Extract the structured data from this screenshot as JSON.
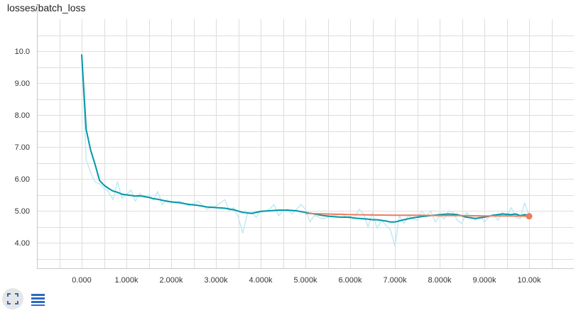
{
  "title": "losses/batch_loss",
  "icons": {
    "expand": "fullscreen-icon",
    "data": "data-table-icon"
  },
  "colors": {
    "raw": "#bfe8f2",
    "smoothed": "#0097a7",
    "second_run": "#ef7c5b"
  },
  "chart_data": {
    "type": "line",
    "xlim": [
      -1000,
      11000
    ],
    "ylim": [
      3.2,
      11.0
    ],
    "grid": true,
    "x_ticks": [
      0,
      1000,
      2000,
      3000,
      4000,
      5000,
      6000,
      7000,
      8000,
      9000,
      10000
    ],
    "x_tick_labels": [
      "0.000",
      "1.000k",
      "2.000k",
      "3.000k",
      "4.000k",
      "5.000k",
      "6.000k",
      "7.000k",
      "8.000k",
      "9.000k",
      "10.00k"
    ],
    "y_ticks": [
      4,
      5,
      6,
      7,
      8,
      9,
      10
    ],
    "y_tick_labels": [
      "4.00",
      "5.00",
      "6.00",
      "7.00",
      "8.00",
      "9.00",
      "10.0"
    ],
    "series": [
      {
        "style": "raw",
        "color": "#bfe8f2",
        "x": [
          0,
          100,
          200,
          300,
          400,
          500,
          600,
          700,
          800,
          900,
          1000,
          1100,
          1200,
          1300,
          1400,
          1500,
          1600,
          1700,
          1800,
          1900,
          2000,
          2200,
          2400,
          2600,
          2800,
          3000,
          3200,
          3300,
          3400,
          3500,
          3600,
          3700,
          3800,
          3900,
          4000,
          4100,
          4200,
          4300,
          4400,
          4500,
          4600,
          4700,
          4800,
          4900,
          5000,
          5100,
          5200,
          5400,
          5600,
          5800,
          6000,
          6100,
          6200,
          6300,
          6400,
          6500,
          6600,
          6700,
          6800,
          6900,
          7000,
          7100,
          7200,
          7300,
          7400,
          7500,
          7600,
          7700,
          7800,
          7900,
          8000,
          8100,
          8200,
          8300,
          8400,
          8500,
          8600,
          8700,
          8800,
          8900,
          9000,
          9100,
          9200,
          9300,
          9400,
          9500,
          9600,
          9700,
          9800,
          9900,
          10000
        ],
        "y": [
          9.9,
          6.6,
          6.2,
          5.9,
          5.85,
          5.7,
          5.6,
          5.35,
          5.9,
          5.4,
          5.5,
          5.65,
          5.3,
          5.55,
          5.4,
          5.5,
          5.35,
          5.6,
          5.2,
          5.35,
          5.25,
          5.3,
          5.15,
          5.3,
          5.05,
          5.15,
          5.35,
          5.0,
          5.1,
          4.8,
          4.3,
          4.9,
          4.95,
          4.8,
          5.0,
          5.0,
          5.05,
          5.2,
          4.85,
          5.0,
          5.05,
          4.9,
          5.05,
          5.2,
          5.05,
          4.65,
          4.85,
          4.75,
          4.85,
          4.9,
          4.75,
          4.8,
          5.05,
          4.9,
          4.5,
          4.95,
          4.45,
          4.7,
          4.55,
          4.4,
          3.9,
          4.85,
          4.6,
          4.85,
          4.75,
          4.7,
          5.0,
          4.8,
          5.0,
          4.65,
          4.85,
          4.75,
          5.0,
          4.95,
          4.7,
          4.6,
          4.95,
          4.8,
          4.7,
          4.85,
          4.65,
          4.8,
          4.9,
          4.7,
          4.95,
          4.85,
          5.1,
          4.8,
          4.75,
          5.25,
          4.85
        ]
      },
      {
        "style": "smoothed",
        "color": "#0097a7",
        "x": [
          0,
          100,
          200,
          300,
          400,
          500,
          600,
          700,
          800,
          900,
          1000,
          1100,
          1200,
          1300,
          1400,
          1500,
          1600,
          1700,
          1800,
          1900,
          2000,
          2200,
          2400,
          2600,
          2800,
          3000,
          3200,
          3400,
          3600,
          3800,
          4000,
          4200,
          4400,
          4600,
          4800,
          5000,
          5200,
          5400,
          5600,
          5800,
          6000,
          6100,
          6200,
          6300,
          6400,
          6500,
          6600,
          6700,
          6800,
          6900,
          7000,
          7200,
          7400,
          7600,
          7800,
          8000,
          8200,
          8400,
          8600,
          8800,
          9000,
          9200,
          9400,
          9600,
          9700,
          9800,
          9900,
          10000
        ],
        "y": [
          9.9,
          7.55,
          6.9,
          6.45,
          5.95,
          5.8,
          5.7,
          5.62,
          5.58,
          5.52,
          5.5,
          5.48,
          5.46,
          5.47,
          5.45,
          5.42,
          5.38,
          5.36,
          5.33,
          5.3,
          5.28,
          5.25,
          5.2,
          5.17,
          5.12,
          5.1,
          5.08,
          5.03,
          4.95,
          4.92,
          4.98,
          5.0,
          5.02,
          5.02,
          5.0,
          4.95,
          4.9,
          4.85,
          4.82,
          4.8,
          4.8,
          4.77,
          4.76,
          4.75,
          4.74,
          4.72,
          4.72,
          4.7,
          4.68,
          4.65,
          4.65,
          4.72,
          4.78,
          4.82,
          4.85,
          4.88,
          4.9,
          4.88,
          4.8,
          4.76,
          4.8,
          4.86,
          4.9,
          4.88,
          4.9,
          4.85,
          4.88,
          4.85
        ]
      },
      {
        "style": "second_run",
        "color": "#ef7c5b",
        "x": [
          5000,
          5500,
          6000,
          6500,
          7000,
          7500,
          8000,
          8500,
          9000,
          9500,
          10000
        ],
        "y": [
          4.92,
          4.9,
          4.88,
          4.87,
          4.86,
          4.86,
          4.85,
          4.85,
          4.84,
          4.84,
          4.83
        ],
        "end_marker": true
      }
    ]
  }
}
